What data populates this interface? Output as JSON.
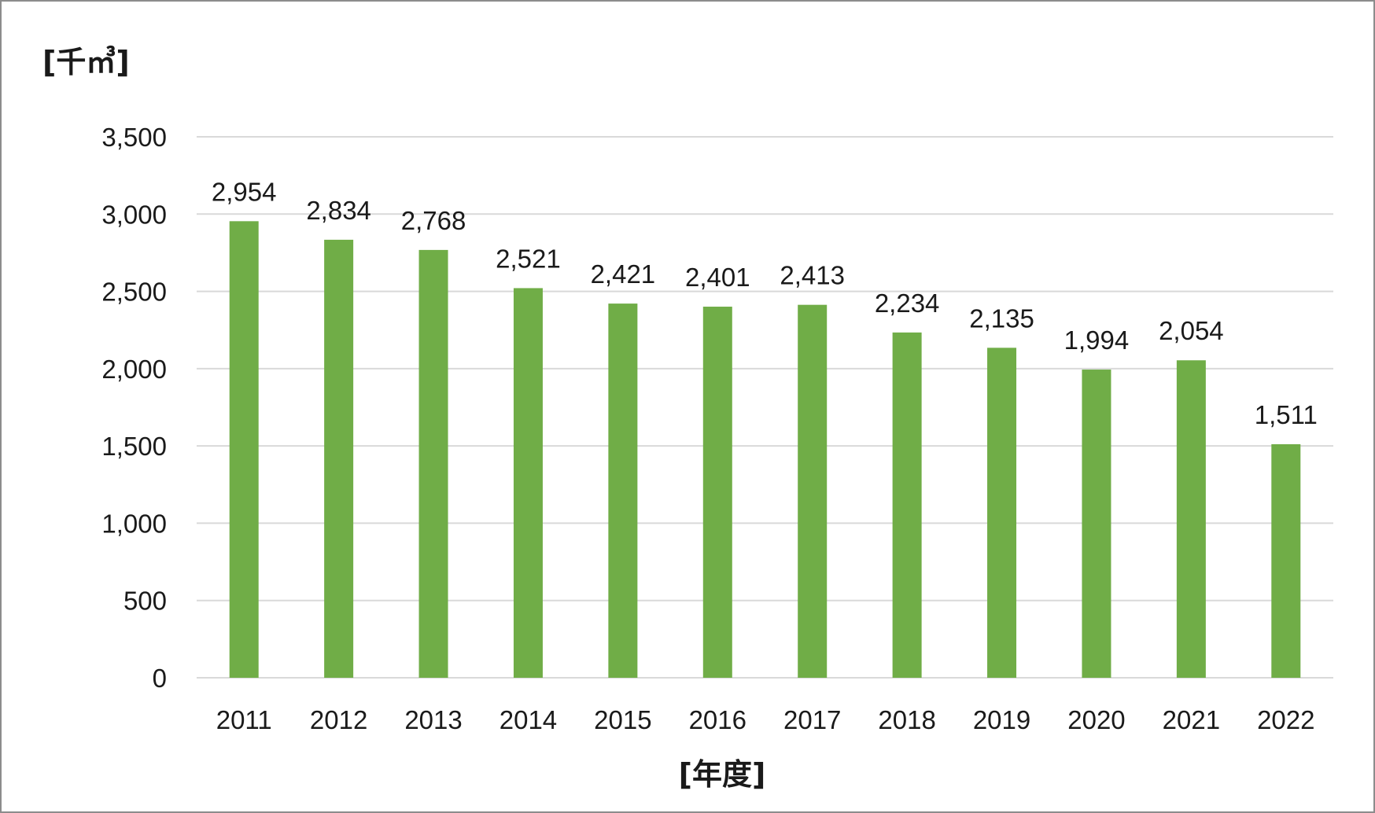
{
  "chart_data": {
    "type": "bar",
    "ylabel": "[千㎥]",
    "xlabel": "[年度]",
    "categories": [
      "2011",
      "2012",
      "2013",
      "2014",
      "2015",
      "2016",
      "2017",
      "2018",
      "2019",
      "2020",
      "2021",
      "2022"
    ],
    "values": [
      2954,
      2834,
      2768,
      2521,
      2421,
      2401,
      2413,
      2234,
      2135,
      1994,
      2054,
      1511
    ],
    "data_labels": [
      "2,954",
      "2,834",
      "2,768",
      "2,521",
      "2,421",
      "2,401",
      "2,413",
      "2,234",
      "2,135",
      "1,994",
      "2,054",
      "1,511"
    ],
    "ylim": [
      0,
      3500
    ],
    "yticks": [
      0,
      500,
      1000,
      1500,
      2000,
      2500,
      3000,
      3500
    ],
    "ytick_labels": [
      "0",
      "500",
      "1,000",
      "1,500",
      "2,000",
      "2,500",
      "3,000",
      "3,500"
    ],
    "grid": true,
    "legend": "none",
    "bar_color": "#70ad47",
    "grid_color": "#d9d9d9"
  }
}
